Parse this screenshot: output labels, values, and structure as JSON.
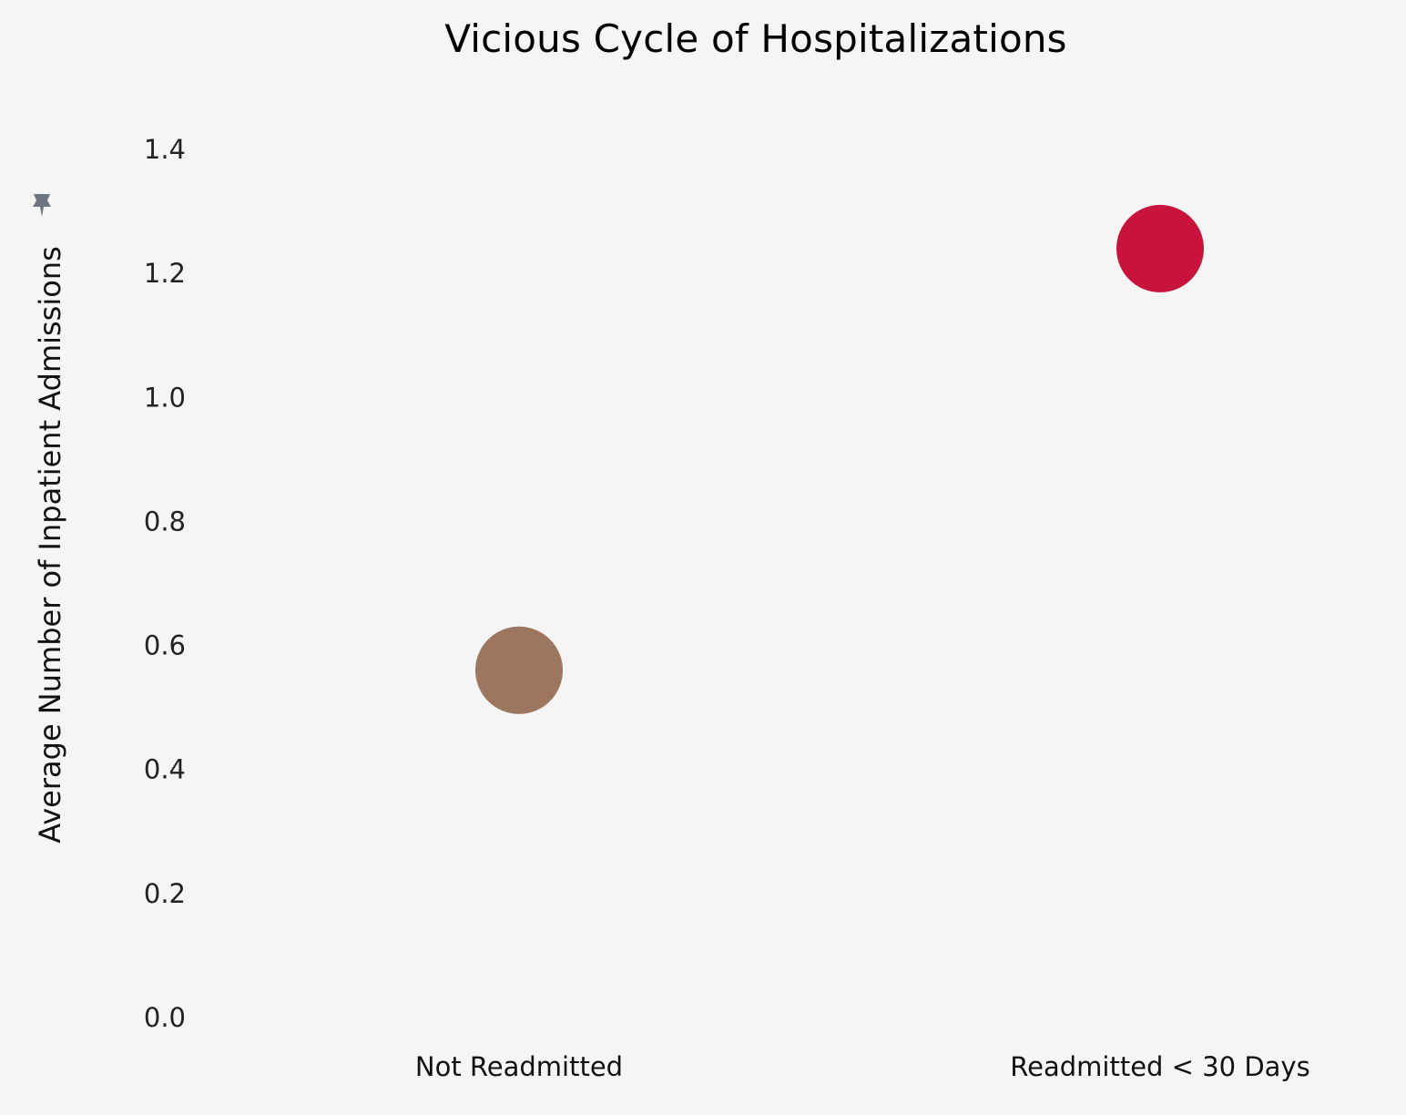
{
  "chart_data": {
    "type": "scatter",
    "title": "Vicious Cycle of Hospitalizations",
    "xlabel": "",
    "ylabel": "Average Number of Inpatient Admissions",
    "ylabel_icon": "pin-icon",
    "categories": [
      "Not Readmitted",
      "Readmitted < 30 Days"
    ],
    "values": [
      0.56,
      1.24
    ],
    "colors": [
      "#9c765e",
      "#c8143c"
    ],
    "ylim": [
      0.0,
      1.4
    ],
    "yticks": [
      0.0,
      0.2,
      0.4,
      0.6,
      0.8,
      1.0,
      1.2,
      1.4
    ],
    "ytick_labels": [
      "0.0",
      "0.2",
      "0.4",
      "0.6",
      "0.8",
      "1.0",
      "1.2",
      "1.4"
    ],
    "grid": false,
    "legend": "none"
  },
  "colors": {
    "background": "#f5f5f5",
    "pin_icon": "#6e7480"
  }
}
